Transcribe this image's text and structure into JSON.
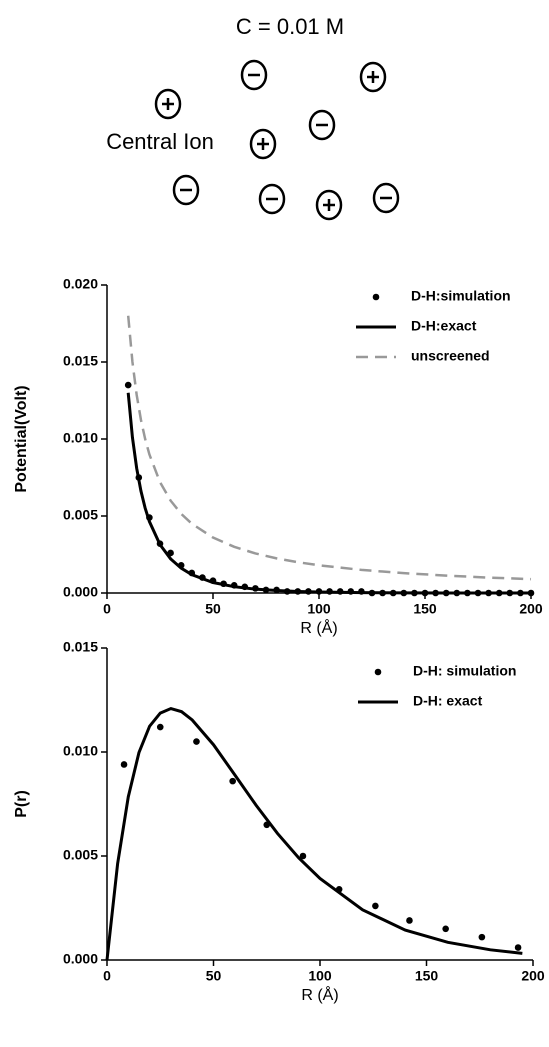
{
  "diagram": {
    "title": "C = 0.01 M",
    "label": "Central Ion"
  },
  "chart_data": [
    {
      "type": "line",
      "xlabel": "R (Å)",
      "ylabel": "Potential(Volt)",
      "xlim": [
        0,
        200
      ],
      "xticks": [
        0,
        50,
        100,
        150,
        200
      ],
      "ylim": [
        0,
        0.02
      ],
      "yticks": [
        {
          "value": 0,
          "label": "0.000"
        },
        0.005,
        {
          "value": 0.01,
          "label": "0.010"
        },
        0.015,
        {
          "value": 0.02,
          "label": "0.020"
        }
      ],
      "legend": "upper right",
      "series": [
        {
          "name": "D-H:simulation",
          "style": "dots",
          "color": "#000000",
          "x": [
            10,
            15,
            20,
            25,
            30,
            35,
            40,
            45,
            50,
            55,
            60,
            65,
            70,
            75,
            80,
            85,
            90,
            95,
            100,
            105,
            110,
            115,
            120,
            125,
            130,
            135,
            140,
            145,
            150,
            155,
            160,
            165,
            170,
            175,
            180,
            185,
            190,
            195,
            200
          ],
          "values": [
            0.0135,
            0.0075,
            0.0049,
            0.0032,
            0.0026,
            0.0018,
            0.0013,
            0.001,
            0.0008,
            0.0006,
            0.0005,
            0.0004,
            0.0003,
            0.0002,
            0.0002,
            0.0001,
            0.0001,
            0.0001,
            0.0001,
            0.0001,
            0.0001,
            0.0001,
            0.0001,
            0,
            0,
            0,
            0,
            0,
            0,
            0,
            0,
            0,
            0,
            0,
            0,
            0,
            0,
            0,
            0
          ]
        },
        {
          "name": "D-H:exact",
          "style": "solid",
          "color": "#000000",
          "x": [
            10,
            12,
            14,
            16,
            18,
            20,
            25,
            30,
            35,
            40,
            50,
            60,
            70,
            80,
            90,
            100,
            120,
            140,
            160,
            180,
            200
          ],
          "values": [
            0.013,
            0.0101,
            0.0081,
            0.00663,
            0.00551,
            0.00464,
            0.00314,
            0.00222,
            0.00161,
            0.00119,
            0.00068,
            0.00041,
            0.00025,
            0.00016,
            0.0001,
            6.5e-05,
            2.8e-05,
            1e-05,
            0,
            0,
            0
          ]
        },
        {
          "name": "unscreened",
          "style": "dashed",
          "color": "#999999",
          "x": [
            10,
            12,
            14,
            16,
            18,
            20,
            25,
            30,
            35,
            40,
            50,
            60,
            70,
            80,
            90,
            100,
            120,
            140,
            160,
            180,
            200
          ],
          "values": [
            0.018,
            0.015,
            0.01286,
            0.01125,
            0.01,
            0.009,
            0.0072,
            0.006,
            0.00514,
            0.0045,
            0.0036,
            0.003,
            0.00257,
            0.00225,
            0.002,
            0.0018,
            0.0015,
            0.00129,
            0.00113,
            0.001,
            0.0009
          ]
        }
      ]
    },
    {
      "type": "line",
      "xlabel": "R (Å)",
      "ylabel": "P(r)",
      "xlim": [
        0,
        200
      ],
      "xticks": [
        0,
        50,
        100,
        150,
        200
      ],
      "ylim": [
        0,
        0.015
      ],
      "yticks": [
        {
          "value": 0,
          "label": "0.000"
        },
        0.005,
        {
          "value": 0.01,
          "label": "0.010"
        },
        0.015
      ],
      "legend": "upper right",
      "series": [
        {
          "name": "D-H: simulation",
          "style": "dots",
          "color": "#000000",
          "x": [
            8,
            25,
            42,
            59,
            75,
            92,
            109,
            126,
            142,
            159,
            176,
            193
          ],
          "values": [
            0.0094,
            0.0112,
            0.0105,
            0.0086,
            0.0065,
            0.005,
            0.0034,
            0.0026,
            0.0019,
            0.0015,
            0.0011,
            0.0006
          ]
        },
        {
          "name": "D-H: exact",
          "style": "solid",
          "color": "#000000",
          "x": [
            0,
            5,
            10,
            15,
            20,
            25,
            30,
            35,
            40,
            50,
            60,
            70,
            80,
            90,
            100,
            120,
            140,
            160,
            180,
            195
          ],
          "values": [
            0,
            0.00464,
            0.00785,
            0.00997,
            0.01124,
            0.01187,
            0.01209,
            0.01194,
            0.01154,
            0.01035,
            0.0089,
            0.00744,
            0.00609,
            0.00491,
            0.00392,
            0.00241,
            0.00144,
            0.00085,
            0.00049,
            0.00032
          ]
        }
      ]
    }
  ]
}
